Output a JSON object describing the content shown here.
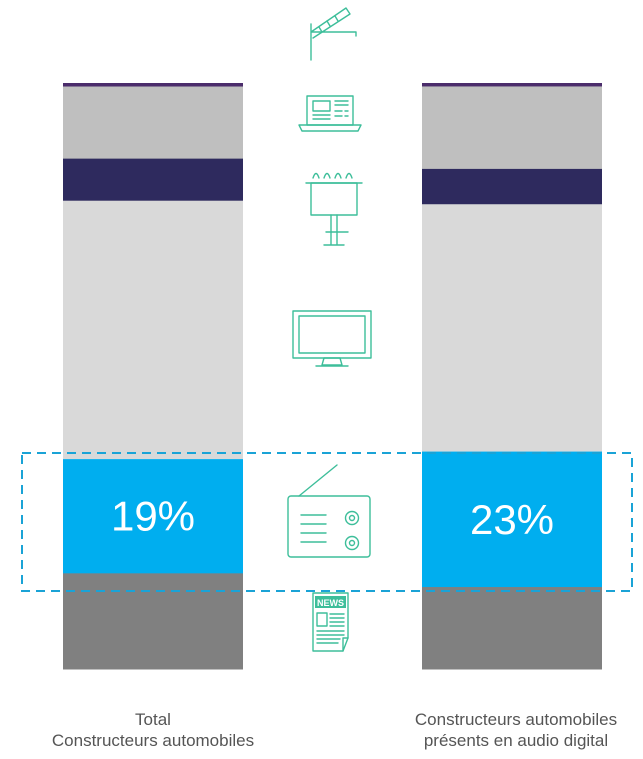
{
  "chart_data": {
    "type": "bar",
    "stacked": true,
    "normalized": true,
    "orientation": "vertical",
    "categories": [
      "Total\nConstructeurs automobiles",
      "Constructeurs automobiles\nprésents en audio digital"
    ],
    "category_lines": [
      [
        "Total",
        "Constructeurs automobiles"
      ],
      [
        "Constructeurs automobiles",
        "présents en audio digital"
      ]
    ],
    "series": [
      {
        "icon": "newspaper-icon",
        "color": "#808080",
        "values": [
          16,
          14
        ]
      },
      {
        "icon": "radio-icon",
        "color": "#00aeef",
        "values": [
          19,
          23
        ]
      },
      {
        "icon": "tv-icon",
        "color": "#d9d9d9",
        "values": [
          43,
          42
        ]
      },
      {
        "icon": "billboard-icon",
        "color": "#2e2a5e",
        "values": [
          7,
          6
        ]
      },
      {
        "icon": "laptop-icon",
        "color": "#bfbfbf",
        "values": [
          12,
          14
        ]
      },
      {
        "icon": "cinema-clapper-icon",
        "color": "#4b2c6b",
        "values": [
          0.5,
          0.5
        ]
      }
    ],
    "data_labels": {
      "radio-icon": [
        "19%",
        "23%"
      ]
    },
    "highlight": "radio-icon",
    "highlight_color": "#1aa3d6",
    "icon_color": "#3dbe9a",
    "label_color": "#555555",
    "ylim": [
      0,
      100
    ]
  }
}
